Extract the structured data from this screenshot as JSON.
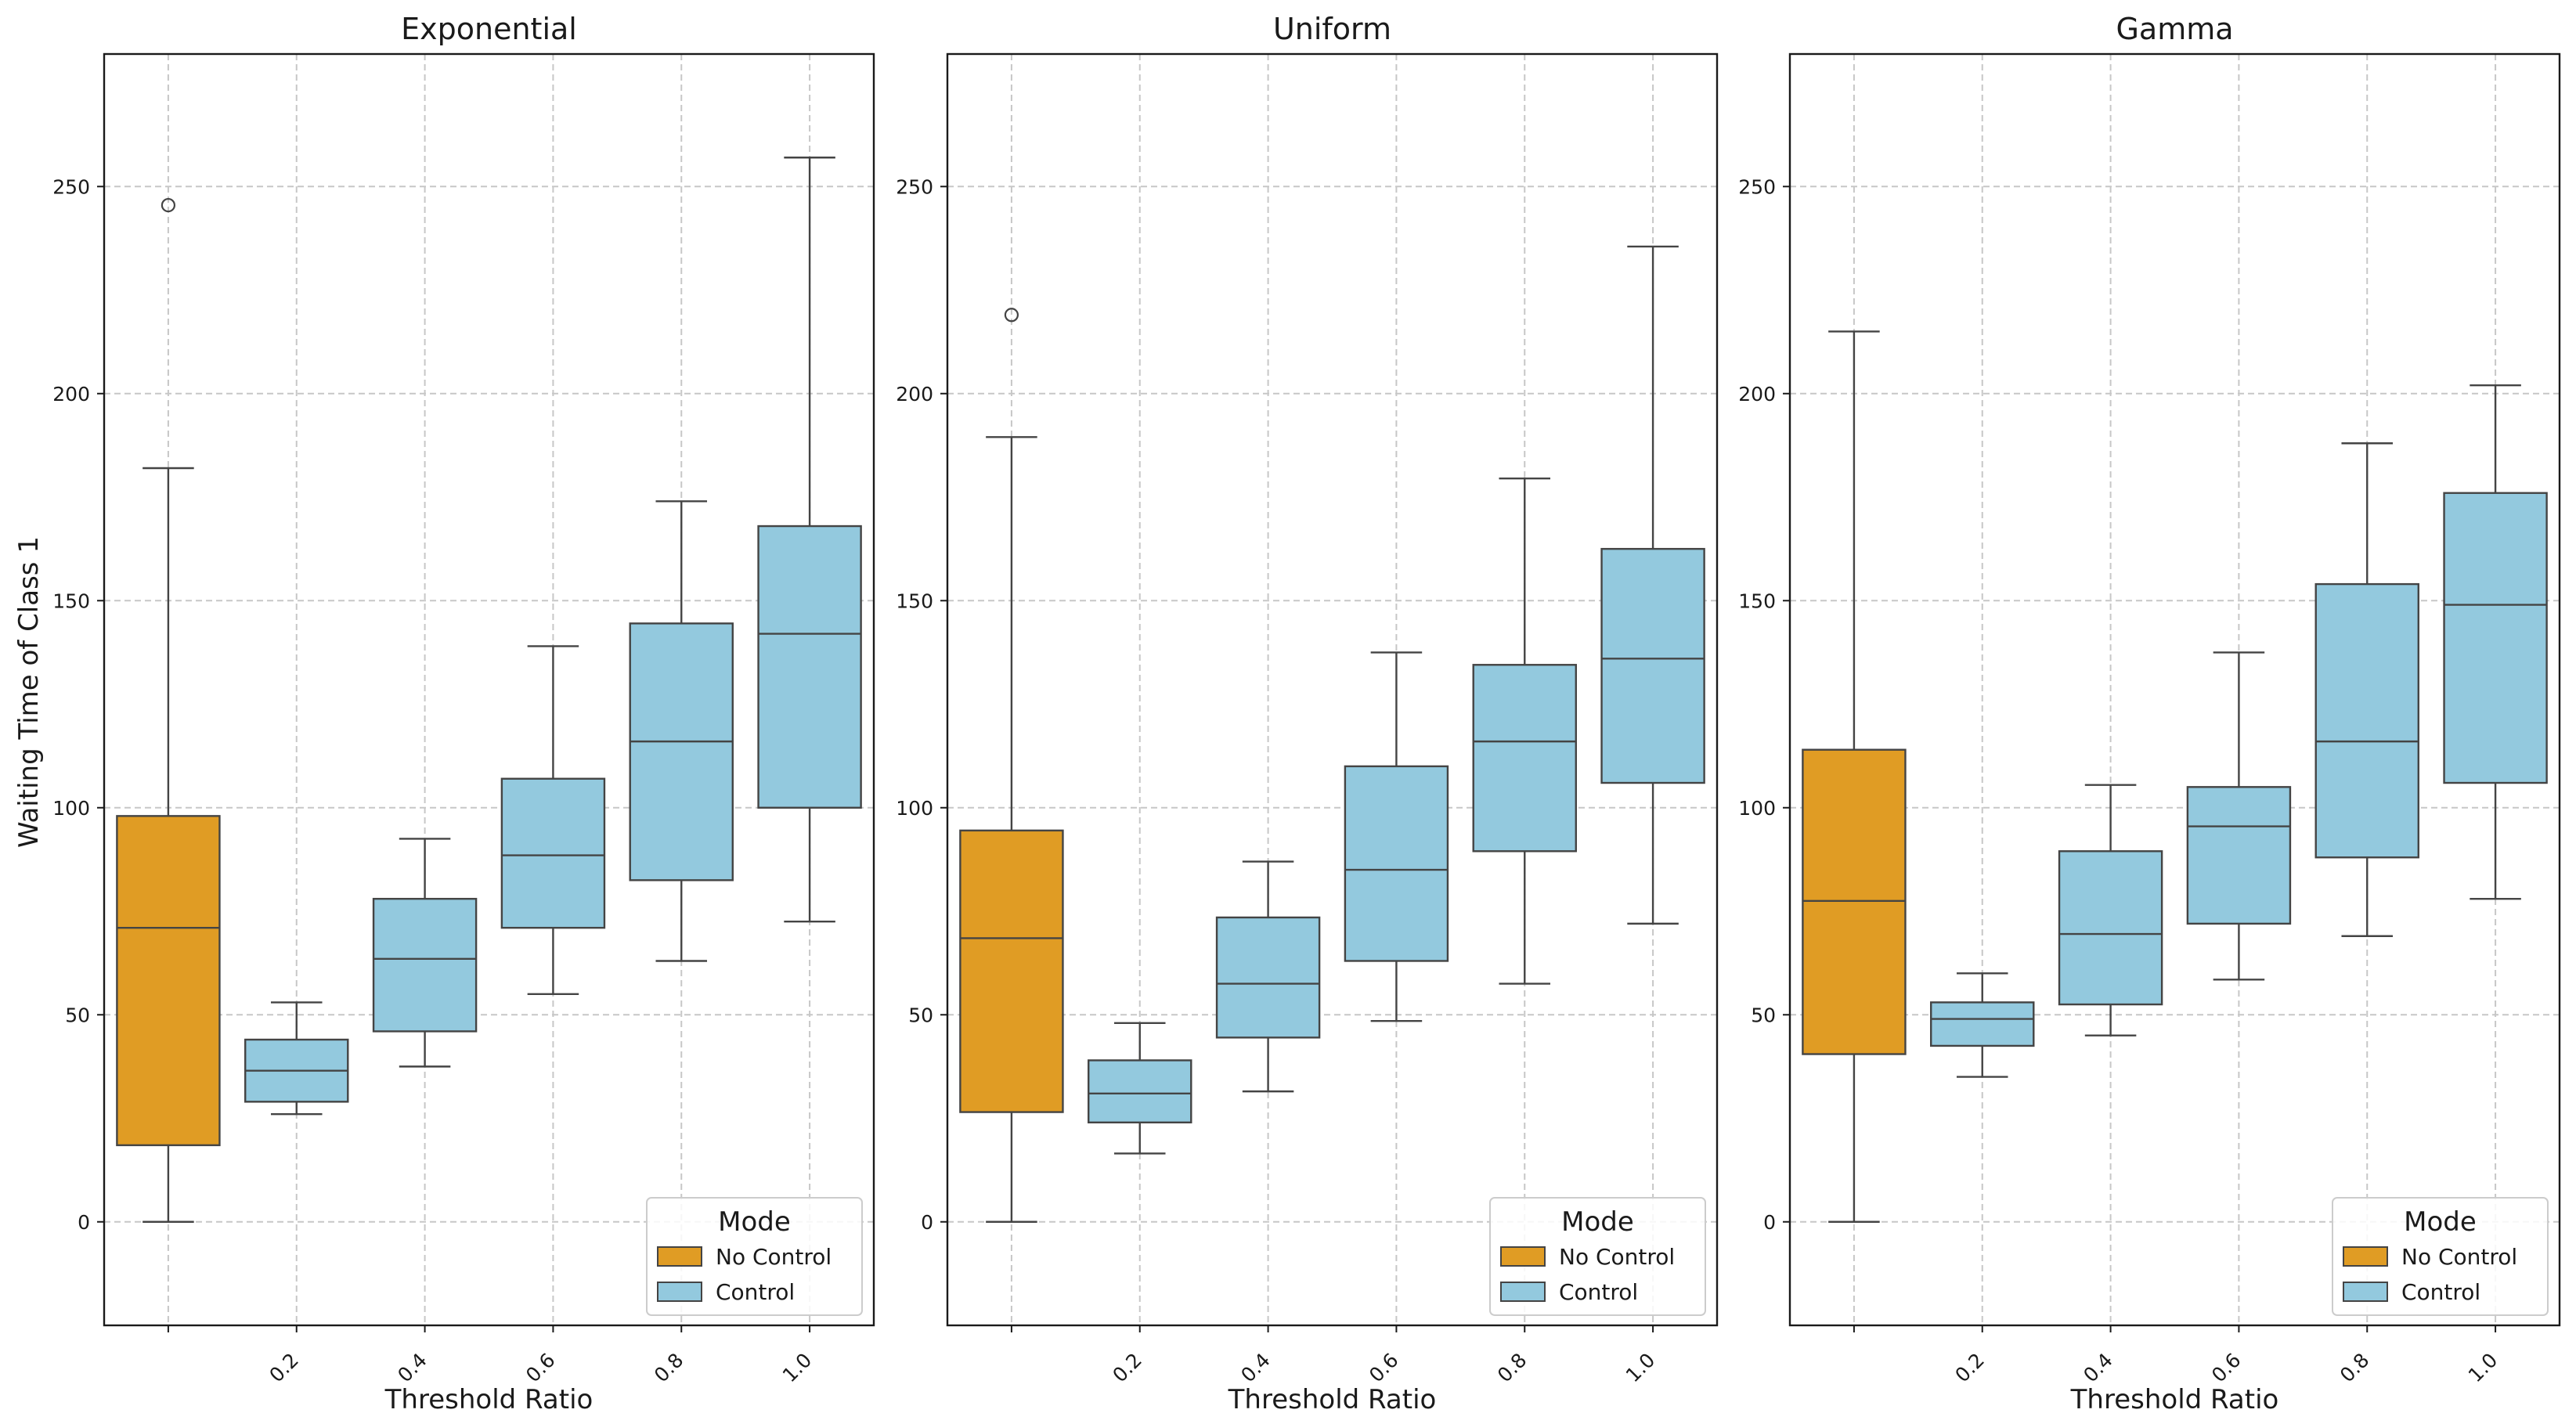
{
  "figure": {
    "ylabel": "Waiting Time of Class 1",
    "xlabel": "Threshold Ratio"
  },
  "colors": {
    "no_control": "#e09c24",
    "control": "#93c9de",
    "edge": "#444444",
    "grid": "#c7c7c7",
    "axis": "#1a1a1a"
  },
  "chart_data": [
    {
      "type": "box",
      "title": "Exponential",
      "xlabel": "Threshold Ratio",
      "ylabel": "Waiting Time of Class 1",
      "ylim": [
        -25,
        282
      ],
      "yticks": [
        0,
        50,
        100,
        150,
        200,
        250
      ],
      "categories": [
        "",
        "0.2",
        "0.4",
        "0.6",
        "0.8",
        "1.0"
      ],
      "grid": true,
      "legend": {
        "title": "Mode",
        "entries": [
          "No Control",
          "Control"
        ],
        "position": "lower-right"
      },
      "boxes": [
        {
          "category": "",
          "mode": "No Control",
          "whisker_low": 0,
          "q1": 18.5,
          "median": 71,
          "q3": 98,
          "whisker_high": 182,
          "outliers": [
            245.5
          ]
        },
        {
          "category": "0.2",
          "mode": "Control",
          "whisker_low": 26,
          "q1": 29,
          "median": 36.5,
          "q3": 44,
          "whisker_high": 53,
          "outliers": []
        },
        {
          "category": "0.4",
          "mode": "Control",
          "whisker_low": 37.5,
          "q1": 46,
          "median": 63.5,
          "q3": 78,
          "whisker_high": 92.5,
          "outliers": []
        },
        {
          "category": "0.6",
          "mode": "Control",
          "whisker_low": 55,
          "q1": 71,
          "median": 88.5,
          "q3": 107,
          "whisker_high": 139,
          "outliers": []
        },
        {
          "category": "0.8",
          "mode": "Control",
          "whisker_low": 63,
          "q1": 82.5,
          "median": 116,
          "q3": 144.5,
          "whisker_high": 174,
          "outliers": []
        },
        {
          "category": "1.0",
          "mode": "Control",
          "whisker_low": 72.5,
          "q1": 100,
          "median": 142,
          "q3": 168,
          "whisker_high": 257,
          "outliers": []
        }
      ]
    },
    {
      "type": "box",
      "title": "Uniform",
      "xlabel": "Threshold Ratio",
      "ylabel": "",
      "ylim": [
        -25,
        282
      ],
      "yticks": [
        0,
        50,
        100,
        150,
        200,
        250
      ],
      "categories": [
        "",
        "0.2",
        "0.4",
        "0.6",
        "0.8",
        "1.0"
      ],
      "grid": true,
      "legend": {
        "title": "Mode",
        "entries": [
          "No Control",
          "Control"
        ],
        "position": "lower-right"
      },
      "boxes": [
        {
          "category": "",
          "mode": "No Control",
          "whisker_low": 0,
          "q1": 26.5,
          "median": 68.5,
          "q3": 94.5,
          "whisker_high": 189.5,
          "outliers": [
            219
          ]
        },
        {
          "category": "0.2",
          "mode": "Control",
          "whisker_low": 16.5,
          "q1": 24,
          "median": 31,
          "q3": 39,
          "whisker_high": 48,
          "outliers": []
        },
        {
          "category": "0.4",
          "mode": "Control",
          "whisker_low": 31.5,
          "q1": 44.5,
          "median": 57.5,
          "q3": 73.5,
          "whisker_high": 87,
          "outliers": []
        },
        {
          "category": "0.6",
          "mode": "Control",
          "whisker_low": 48.5,
          "q1": 63,
          "median": 85,
          "q3": 110,
          "whisker_high": 137.5,
          "outliers": []
        },
        {
          "category": "0.8",
          "mode": "Control",
          "whisker_low": 57.5,
          "q1": 89.5,
          "median": 116,
          "q3": 134.5,
          "whisker_high": 179.5,
          "outliers": []
        },
        {
          "category": "1.0",
          "mode": "Control",
          "whisker_low": 72,
          "q1": 106,
          "median": 136,
          "q3": 162.5,
          "whisker_high": 235.5,
          "outliers": []
        }
      ]
    },
    {
      "type": "box",
      "title": "Gamma",
      "xlabel": "Threshold Ratio",
      "ylabel": "",
      "ylim": [
        -25,
        282
      ],
      "yticks": [
        0,
        50,
        100,
        150,
        200,
        250
      ],
      "categories": [
        "",
        "0.2",
        "0.4",
        "0.6",
        "0.8",
        "1.0"
      ],
      "grid": true,
      "legend": {
        "title": "Mode",
        "entries": [
          "No Control",
          "Control"
        ],
        "position": "lower-right"
      },
      "boxes": [
        {
          "category": "",
          "mode": "No Control",
          "whisker_low": 0,
          "q1": 40.5,
          "median": 77.5,
          "q3": 114,
          "whisker_high": 215,
          "outliers": []
        },
        {
          "category": "0.2",
          "mode": "Control",
          "whisker_low": 35,
          "q1": 42.5,
          "median": 49,
          "q3": 53,
          "whisker_high": 60,
          "outliers": []
        },
        {
          "category": "0.4",
          "mode": "Control",
          "whisker_low": 45,
          "q1": 52.5,
          "median": 69.5,
          "q3": 89.5,
          "whisker_high": 105.5,
          "outliers": []
        },
        {
          "category": "0.6",
          "mode": "Control",
          "whisker_low": 58.5,
          "q1": 72,
          "median": 95.5,
          "q3": 105,
          "whisker_high": 137.5,
          "outliers": []
        },
        {
          "category": "0.8",
          "mode": "Control",
          "whisker_low": 69,
          "q1": 88,
          "median": 116,
          "q3": 154,
          "whisker_high": 188,
          "outliers": []
        },
        {
          "category": "1.0",
          "mode": "Control",
          "whisker_low": 78,
          "q1": 106,
          "median": 149,
          "q3": 176,
          "whisker_high": 202,
          "outliers": []
        }
      ]
    }
  ]
}
